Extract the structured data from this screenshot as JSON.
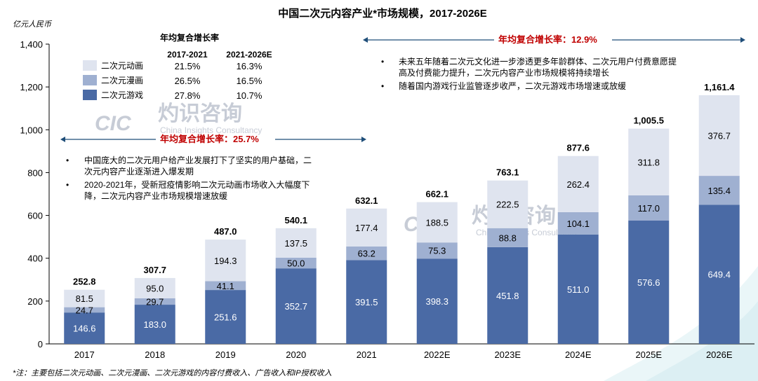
{
  "chart_data": {
    "type": "bar",
    "stacked": true,
    "title": "中国二次元内容产业*市场规模，2017-2026E",
    "unit_label": "亿元人民币",
    "categories": [
      "2017",
      "2018",
      "2019",
      "2020",
      "2021",
      "2022E",
      "2023E",
      "2024E",
      "2025E",
      "2026E"
    ],
    "series": [
      {
        "name": "二次元游戏",
        "color": "#4a6aa5",
        "label_color": "#ffffff",
        "values": [
          146.6,
          183.0,
          251.6,
          352.7,
          391.5,
          398.3,
          451.8,
          511.0,
          576.6,
          649.4
        ]
      },
      {
        "name": "二次元漫画",
        "color": "#9fb0d1",
        "label_color": "#000000",
        "values": [
          24.7,
          29.7,
          41.1,
          50.0,
          63.2,
          75.3,
          88.8,
          104.1,
          117.0,
          135.4
        ]
      },
      {
        "name": "二次元动画",
        "color": "#dfe4ef",
        "label_color": "#000000",
        "values": [
          81.5,
          95.0,
          194.3,
          137.5,
          177.4,
          188.5,
          222.5,
          262.4,
          311.8,
          376.7
        ]
      }
    ],
    "totals": [
      "252.8",
      "307.7",
      "487.0",
      "540.1",
      "632.1",
      "662.1",
      "763.1",
      "877.6",
      "1,005.5",
      "1,161.4"
    ],
    "ylim": [
      0,
      1400
    ],
    "yticks": [
      0,
      200,
      400,
      600,
      800,
      1000,
      1200,
      1400
    ],
    "ytick_labels": [
      "0",
      "200",
      "400",
      "600",
      "800",
      "1,000",
      "1,200",
      "1,400"
    ],
    "grid": false
  },
  "cagr_table": {
    "title": "年均复合增长率",
    "headers": [
      "2017-2021",
      "2021-2026E"
    ],
    "rows": [
      {
        "name": "二次元动画",
        "color": "#dfe4ef",
        "values": [
          "21.5%",
          "16.3%"
        ]
      },
      {
        "name": "二次元漫画",
        "color": "#9fb0d1",
        "values": [
          "26.5%",
          "16.5%"
        ]
      },
      {
        "name": "二次元游戏",
        "color": "#4a6aa5",
        "values": [
          "27.8%",
          "10.7%"
        ]
      }
    ]
  },
  "cagr_left": "年均复合增长率：25.7%",
  "cagr_right": "年均复合增长率：12.9%",
  "notes_left": [
    [
      "中国庞大的二次元用户给产业发展打下了坚实的用户基础，二",
      "次元内容产业逐渐进入爆发期"
    ],
    [
      "2020-2021年，受新冠疫情影响二次元动画市场收入大幅度下",
      "降，二次元内容产业市场规模增速放缓"
    ]
  ],
  "notes_right": [
    [
      "未来五年随着二次元文化进一步渗透更多年龄群体、二次元用户付费意愿提",
      "高及付费能力提升，二次元内容产业市场规模将持续增长"
    ],
    [
      "随着国内游戏行业监管逐步收严，二次元游戏市场增速或放缓"
    ]
  ],
  "watermark": {
    "logo": "CIC",
    "brand": "灼识咨询",
    "sub": "China Insights Consultancy"
  },
  "footnote": "*注：主要包括二次元动画、二次元漫画、二次元游戏的内容付费收入、广告收入和IP授权收入"
}
